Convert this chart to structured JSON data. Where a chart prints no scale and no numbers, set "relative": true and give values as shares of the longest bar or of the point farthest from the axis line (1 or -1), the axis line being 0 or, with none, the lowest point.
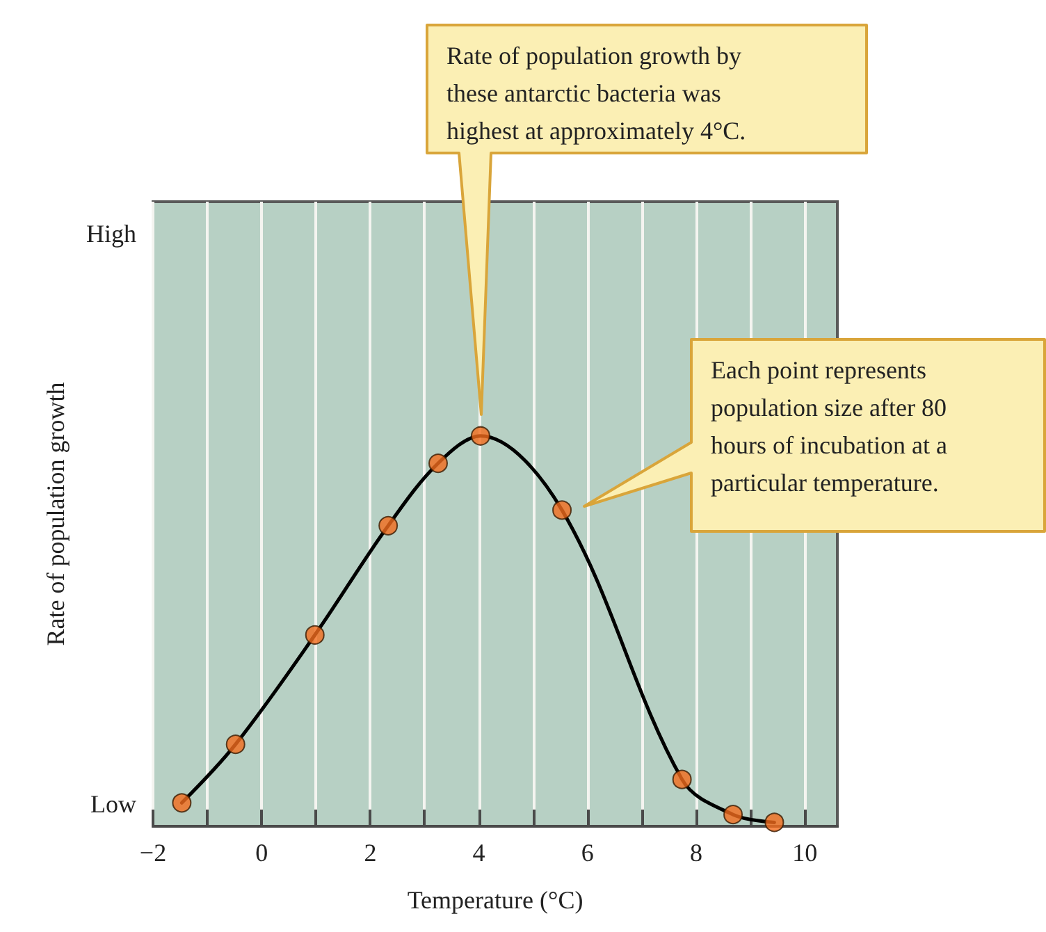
{
  "chart_data": {
    "type": "line",
    "xlabel": "Temperature (°C)",
    "ylabel": "Rate of population growth",
    "relative": true,
    "xlim": [
      -2,
      10.6
    ],
    "xticks": [
      {
        "value": -2,
        "label": "−2"
      },
      {
        "value": -1,
        "label": null
      },
      0,
      {
        "value": 1,
        "label": null
      },
      2,
      {
        "value": 3,
        "label": null
      },
      4,
      {
        "value": 5,
        "label": null
      },
      6,
      {
        "value": 7,
        "label": null
      },
      8,
      {
        "value": 9,
        "label": null
      },
      10
    ],
    "grid": "x",
    "series": [
      {
        "color": "#000000",
        "marker": "none",
        "x": [
          -1.47,
          -0.48,
          0.98,
          2.33,
          3.25,
          4.03,
          5.53,
          7.74,
          8.68,
          9.44
        ],
        "values": [
          0.06,
          0.21,
          0.49,
          0.77,
          0.93,
          1,
          0.81,
          0.12,
          0.03,
          0.01
        ]
      },
      {
        "type": "scatter",
        "color": "#f26b1d",
        "marker": "circle",
        "x": [
          -1.47,
          -0.48,
          0.98,
          2.33,
          3.25,
          4.03,
          5.53,
          7.74,
          8.68,
          9.44
        ],
        "values": [
          0.06,
          0.21,
          0.49,
          0.77,
          0.93,
          1,
          0.81,
          0.12,
          0.03,
          0.01
        ]
      }
    ],
    "annotations": [
      "High",
      "Low",
      "Rate of population growth by these antarctic bacteria was highest at approximately 4°C.",
      "Each point represents population size after 80 hours of incubation at a particular temperature."
    ]
  }
}
